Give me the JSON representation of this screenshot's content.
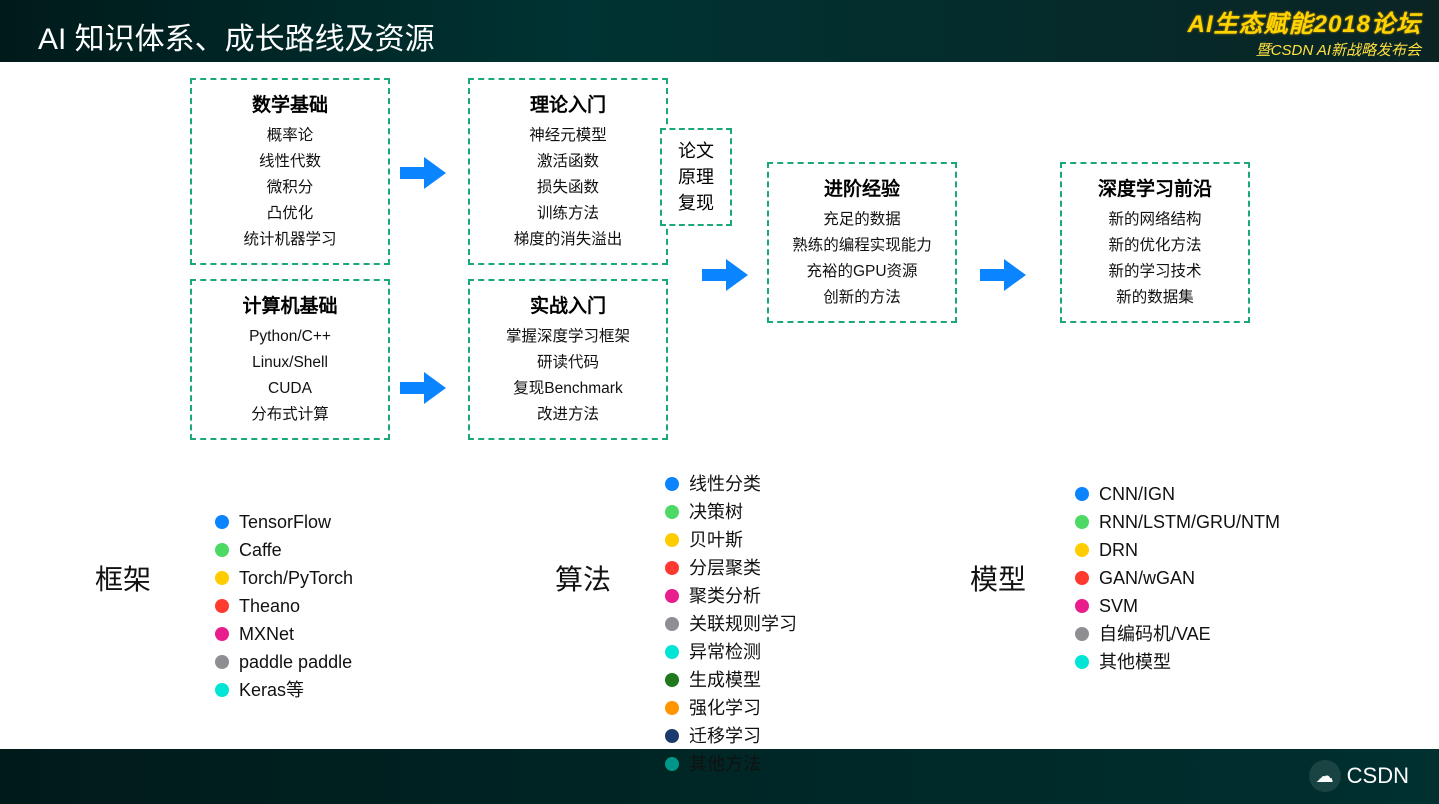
{
  "colors": {
    "border": "#1aa876",
    "arrow": "#0a84ff",
    "dots": {
      "blue": "#0a84ff",
      "green": "#4cd964",
      "yellow": "#ffcc00",
      "red": "#ff3b30",
      "magenta": "#e91e8c",
      "gray": "#8e8e93",
      "cyan": "#00e5d5",
      "darkgreen": "#1f7a1f",
      "orange": "#ff9500",
      "navy": "#1b3a6b",
      "teal": "#009688"
    }
  },
  "header": {
    "title": "AI 知识体系、成长路线及资源",
    "logo_line1": "AI生态赋能2018论坛",
    "logo_line2": "暨CSDN AI新战略发布会",
    "footer_brand": "CSDN"
  },
  "columns": {
    "col1": [
      {
        "heading": "数学基础",
        "items": [
          "概率论",
          "线性代数",
          "微积分",
          "凸优化",
          "统计机器学习"
        ]
      },
      {
        "heading": "计算机基础",
        "items": [
          "Python/C++",
          "Linux/Shell",
          "CUDA",
          "分布式计算"
        ]
      }
    ],
    "col2": [
      {
        "heading": "理论入门",
        "items": [
          "神经元模型",
          "激活函数",
          "损失函数",
          "训练方法",
          "梯度的消失溢出"
        ]
      },
      {
        "heading": "实战入门",
        "items": [
          "掌握深度学习框架",
          "研读代码",
          "复现Benchmark",
          "改进方法"
        ]
      }
    ],
    "paper_box": [
      "论文",
      "原理",
      "复现"
    ],
    "col3": [
      {
        "heading": "进阶经验",
        "items": [
          "充足的数据",
          "熟练的编程实现能力",
          "充裕的GPU资源",
          "创新的方法"
        ]
      }
    ],
    "col4": [
      {
        "heading": "深度学习前沿",
        "items": [
          "新的网络结构",
          "新的优化方法",
          "新的学习技术",
          "新的数据集"
        ]
      }
    ]
  },
  "sections": {
    "framework": {
      "label": "框架",
      "items": [
        {
          "c": "blue",
          "t": "TensorFlow"
        },
        {
          "c": "green",
          "t": "Caffe"
        },
        {
          "c": "yellow",
          "t": "Torch/PyTorch"
        },
        {
          "c": "red",
          "t": "Theano"
        },
        {
          "c": "magenta",
          "t": "MXNet"
        },
        {
          "c": "gray",
          "t": "paddle paddle"
        },
        {
          "c": "cyan",
          "t": "Keras等"
        }
      ]
    },
    "algorithm": {
      "label": "算法",
      "items": [
        {
          "c": "blue",
          "t": "线性分类"
        },
        {
          "c": "green",
          "t": "决策树"
        },
        {
          "c": "yellow",
          "t": "贝叶斯"
        },
        {
          "c": "red",
          "t": "分层聚类"
        },
        {
          "c": "magenta",
          "t": "聚类分析"
        },
        {
          "c": "gray",
          "t": "关联规则学习"
        },
        {
          "c": "cyan",
          "t": "异常检测"
        },
        {
          "c": "darkgreen",
          "t": "生成模型"
        },
        {
          "c": "orange",
          "t": "强化学习"
        },
        {
          "c": "navy",
          "t": "迁移学习"
        },
        {
          "c": "teal",
          "t": "其他方法"
        }
      ]
    },
    "model": {
      "label": "模型",
      "items": [
        {
          "c": "blue",
          "t": "CNN/IGN"
        },
        {
          "c": "green",
          "t": "RNN/LSTM/GRU/NTM"
        },
        {
          "c": "yellow",
          "t": "DRN"
        },
        {
          "c": "red",
          "t": "GAN/wGAN"
        },
        {
          "c": "magenta",
          "t": "SVM"
        },
        {
          "c": "gray",
          "t": "自编码机/VAE"
        },
        {
          "c": "cyan",
          "t": "其他模型"
        }
      ]
    }
  }
}
